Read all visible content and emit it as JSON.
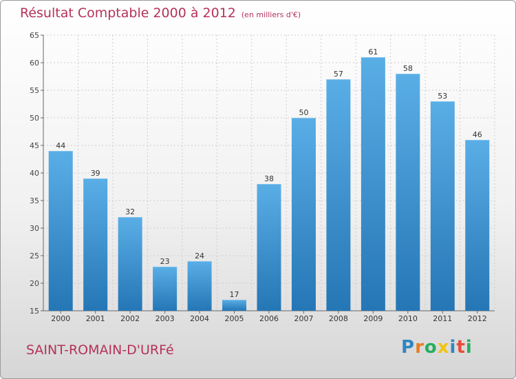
{
  "title": "Résultat Comptable 2000 à 2012",
  "subtitle": "(en milliers d'€)",
  "place_name": "SAINT-ROMAIN-D'URFé",
  "logo": {
    "letters": [
      "P",
      "r",
      "o",
      "x",
      "i",
      "t",
      "i"
    ],
    "colors": [
      "#2e86c1",
      "#e67e22",
      "#27ae60",
      "#f1c40f",
      "#2e86c1",
      "#e74c3c",
      "#27ae60"
    ]
  },
  "colors": {
    "accent": "#b5325a",
    "bar_top": "#5aaee6",
    "bar_bottom": "#2576b5",
    "grid": "#cccccc"
  },
  "chart_data": {
    "type": "bar",
    "title": "Résultat Comptable 2000 à 2012",
    "categories": [
      "2000",
      "2001",
      "2002",
      "2003",
      "2004",
      "2005",
      "2006",
      "2007",
      "2008",
      "2009",
      "2010",
      "2011",
      "2012"
    ],
    "values": [
      44,
      39,
      32,
      23,
      24,
      17,
      38,
      50,
      57,
      61,
      58,
      53,
      46
    ],
    "ylim": [
      15,
      65
    ],
    "yticks": [
      15,
      20,
      25,
      30,
      35,
      40,
      45,
      50,
      55,
      60,
      65
    ],
    "xlabel": "",
    "ylabel": "",
    "grid": true
  }
}
